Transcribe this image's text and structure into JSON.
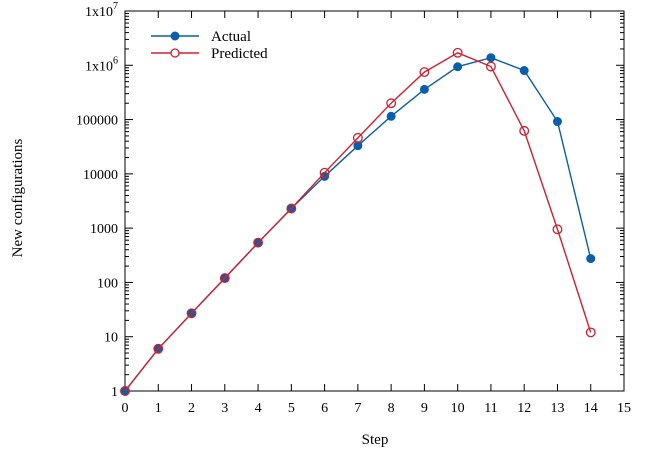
{
  "chart_data": {
    "type": "line",
    "title": "",
    "xlabel": "Step",
    "ylabel": "New configurations",
    "xlim": [
      0,
      15
    ],
    "ylim": [
      1,
      10000000
    ],
    "yscale": "log",
    "grid": false,
    "legend_position": "top-left",
    "x_ticks": [
      "0",
      "1",
      "2",
      "3",
      "4",
      "5",
      "6",
      "7",
      "8",
      "9",
      "10",
      "11",
      "12",
      "13",
      "14",
      "15"
    ],
    "y_ticks": [
      {
        "value": 1,
        "base": "1",
        "exp": ""
      },
      {
        "value": 10,
        "base": "10",
        "exp": ""
      },
      {
        "value": 100,
        "base": "100",
        "exp": ""
      },
      {
        "value": 1000,
        "base": "1000",
        "exp": ""
      },
      {
        "value": 10000,
        "base": "10000",
        "exp": ""
      },
      {
        "value": 100000,
        "base": "100000",
        "exp": ""
      },
      {
        "value": 1000000,
        "base": "1x10",
        "exp": "6"
      },
      {
        "value": 10000000,
        "base": "1x10",
        "exp": "7"
      }
    ],
    "series": [
      {
        "name": "Actual",
        "color": "#0a5fa8",
        "marker": "filled-circle",
        "x": [
          0,
          1,
          2,
          3,
          4,
          5,
          6,
          7,
          8,
          9,
          10,
          11,
          12,
          13,
          14
        ],
        "values": [
          1,
          6,
          27,
          120,
          540,
          2300,
          9000,
          33000,
          115000,
          360000,
          940000,
          1380000,
          800000,
          92000,
          275
        ]
      },
      {
        "name": "Predicted",
        "color": "#d0202f",
        "marker": "open-circle",
        "x": [
          0,
          1,
          2,
          3,
          4,
          5,
          6,
          7,
          8,
          9,
          10,
          11,
          12,
          13,
          14
        ],
        "values": [
          1,
          6,
          27,
          120,
          540,
          2300,
          10500,
          46000,
          200000,
          750000,
          1700000,
          950000,
          62000,
          950,
          12
        ]
      }
    ]
  }
}
